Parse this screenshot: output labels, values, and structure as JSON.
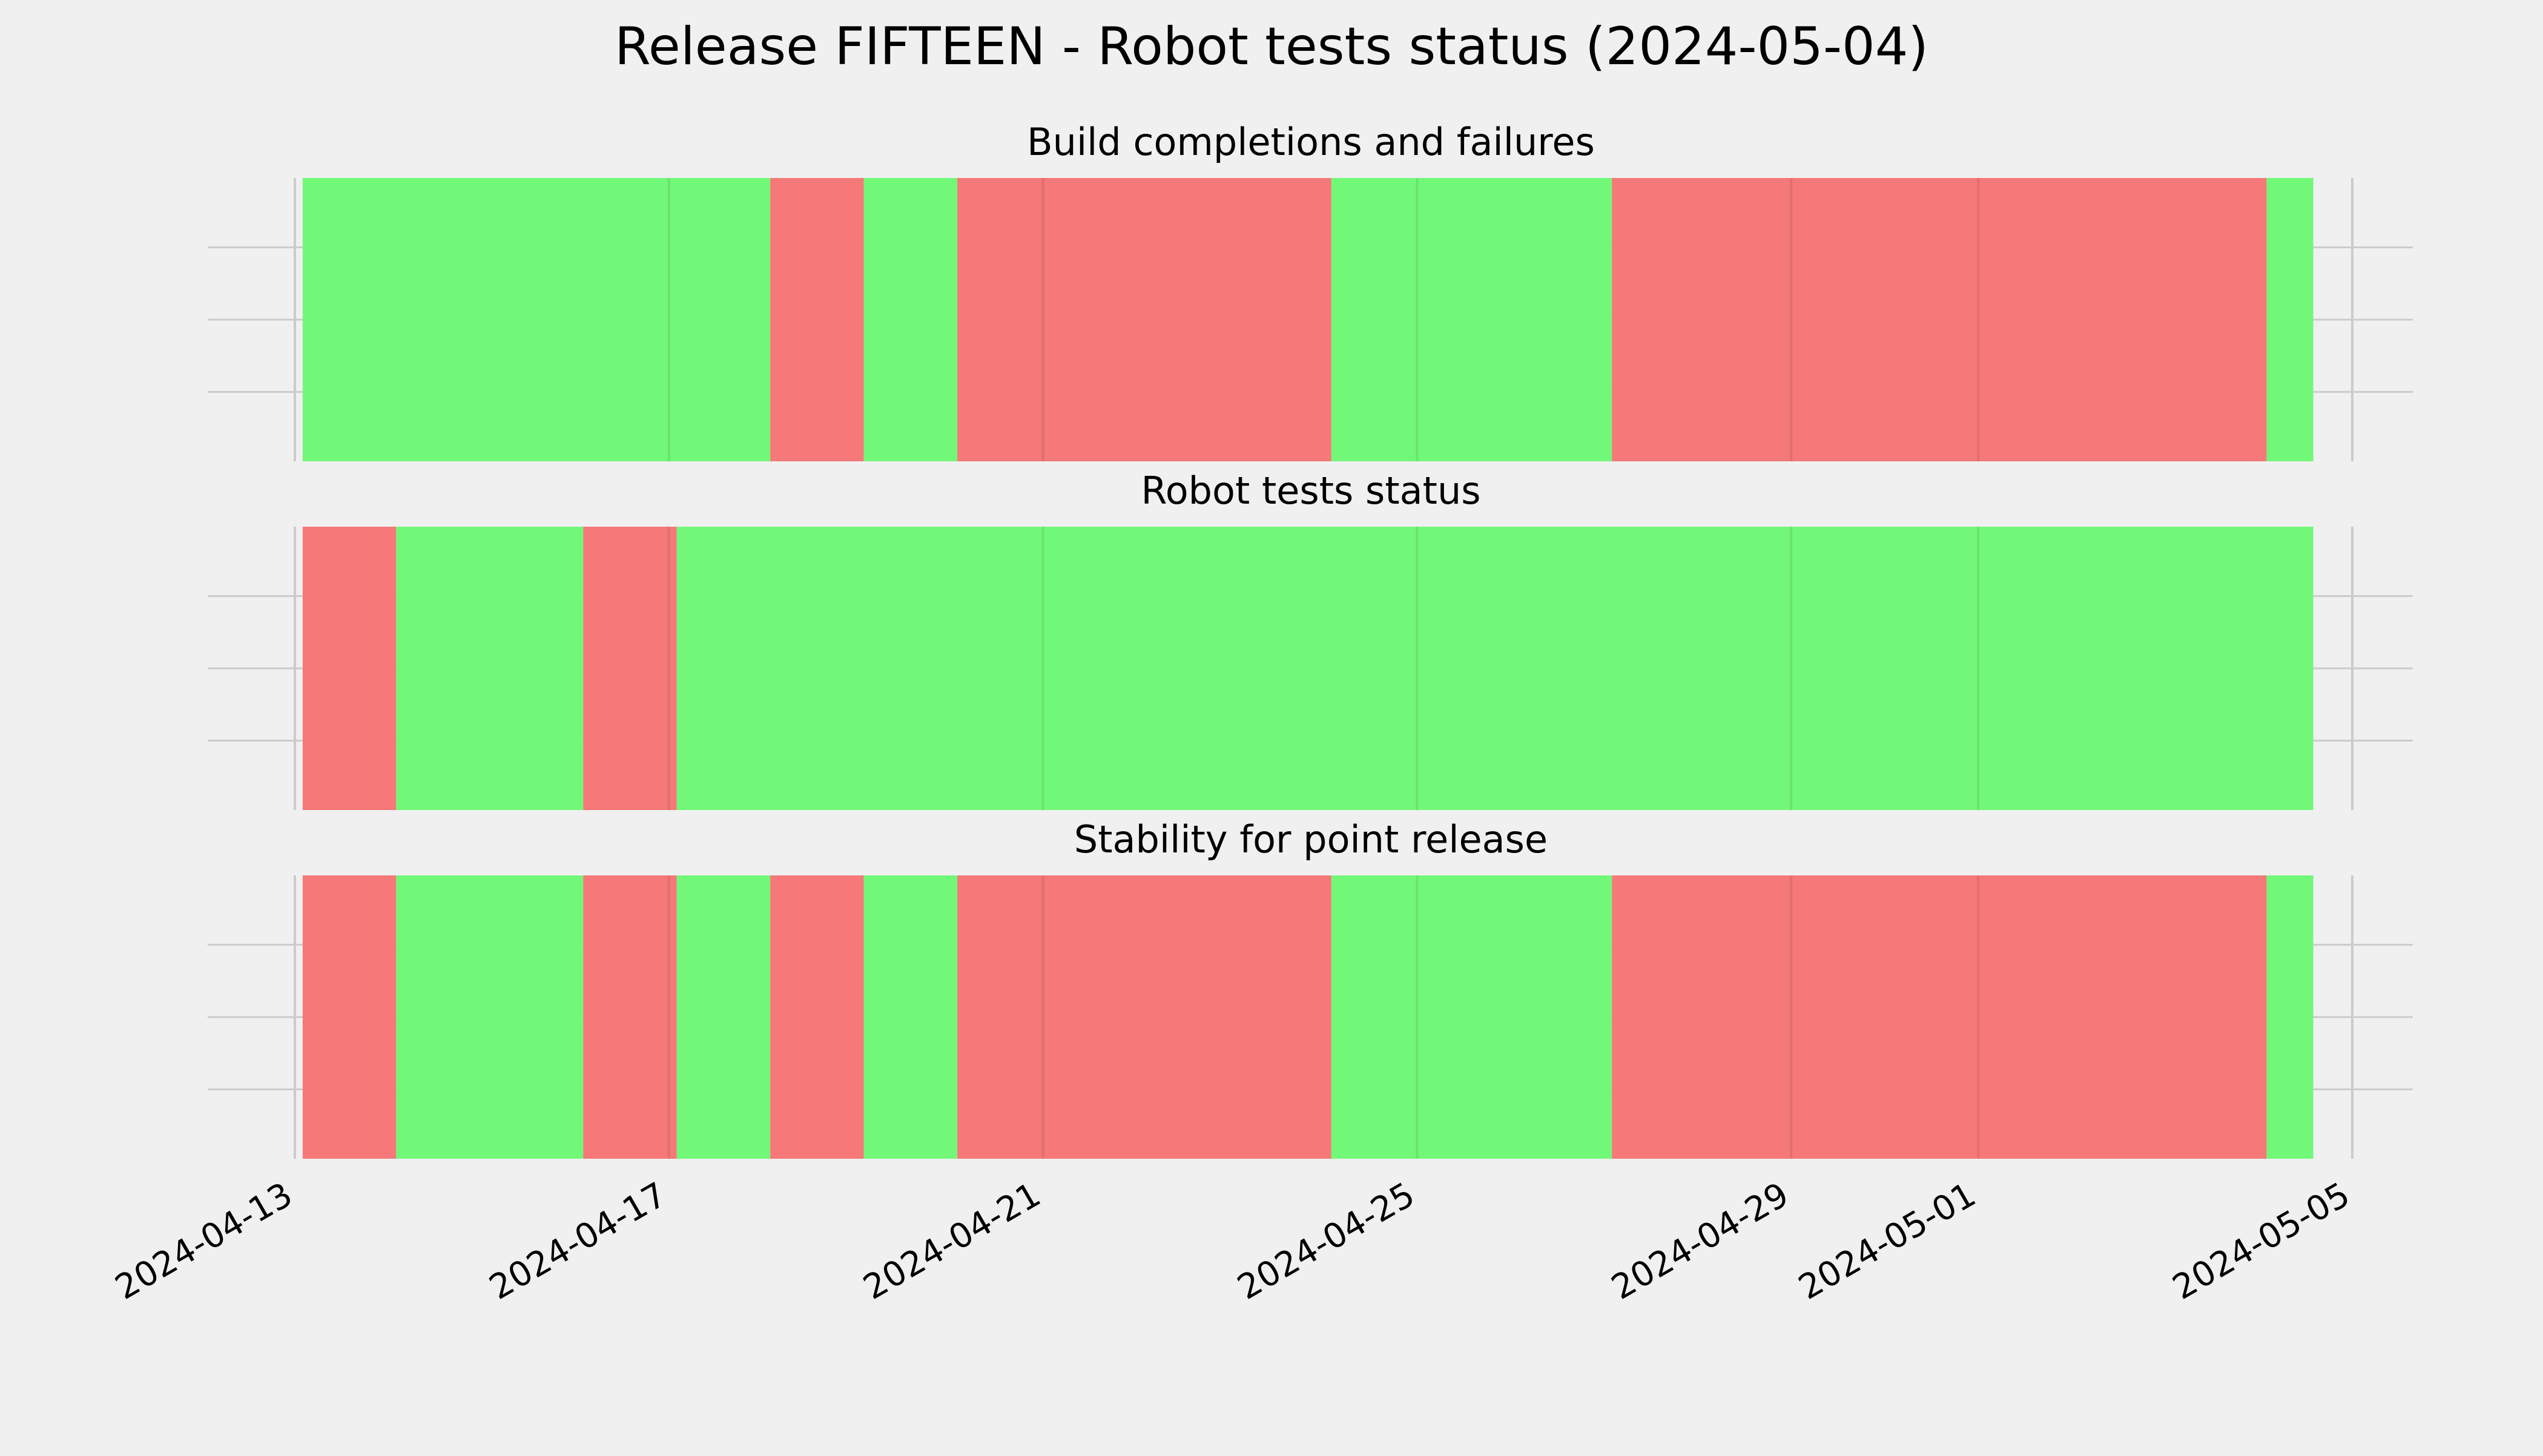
{
  "chart_data": {
    "type": "timeline",
    "title": "Release FIFTEEN - Robot tests status (2024-05-04)",
    "x_range": [
      "2024-04-13",
      "2024-05-05"
    ],
    "x_ticks": [
      "2024-04-13",
      "2024-04-17",
      "2024-04-21",
      "2024-04-25",
      "2024-04-29",
      "2024-05-01",
      "2024-05-05"
    ],
    "status_colors": {
      "pass": "#72f878",
      "fail": "#f67878"
    },
    "grid": true,
    "panels": [
      {
        "title": "Build completions and failures",
        "segments": [
          {
            "start": "2024-04-13 02:00",
            "end": "2024-04-18 02:00",
            "status": "pass"
          },
          {
            "start": "2024-04-18 02:00",
            "end": "2024-04-19 02:00",
            "status": "fail"
          },
          {
            "start": "2024-04-19 02:00",
            "end": "2024-04-20 02:00",
            "status": "pass"
          },
          {
            "start": "2024-04-20 02:00",
            "end": "2024-04-24 02:00",
            "status": "fail"
          },
          {
            "start": "2024-04-24 02:00",
            "end": "2024-04-27 02:00",
            "status": "pass"
          },
          {
            "start": "2024-04-27 02:00",
            "end": "2024-05-04 02:00",
            "status": "fail"
          },
          {
            "start": "2024-05-04 02:00",
            "end": "2024-05-04 14:00",
            "status": "pass"
          }
        ]
      },
      {
        "title": "Robot tests status",
        "segments": [
          {
            "start": "2024-04-13 02:00",
            "end": "2024-04-14 02:00",
            "status": "fail"
          },
          {
            "start": "2024-04-14 02:00",
            "end": "2024-04-16 02:00",
            "status": "pass"
          },
          {
            "start": "2024-04-16 02:00",
            "end": "2024-04-17 02:00",
            "status": "fail"
          },
          {
            "start": "2024-04-17 02:00",
            "end": "2024-05-04 14:00",
            "status": "pass"
          }
        ]
      },
      {
        "title": "Stability for point release",
        "segments": [
          {
            "start": "2024-04-13 02:00",
            "end": "2024-04-14 02:00",
            "status": "fail"
          },
          {
            "start": "2024-04-14 02:00",
            "end": "2024-04-16 02:00",
            "status": "pass"
          },
          {
            "start": "2024-04-16 02:00",
            "end": "2024-04-17 02:00",
            "status": "fail"
          },
          {
            "start": "2024-04-17 02:00",
            "end": "2024-04-18 02:00",
            "status": "pass"
          },
          {
            "start": "2024-04-18 02:00",
            "end": "2024-04-19 02:00",
            "status": "fail"
          },
          {
            "start": "2024-04-19 02:00",
            "end": "2024-04-20 02:00",
            "status": "pass"
          },
          {
            "start": "2024-04-20 02:00",
            "end": "2024-04-24 02:00",
            "status": "fail"
          },
          {
            "start": "2024-04-24 02:00",
            "end": "2024-04-27 02:00",
            "status": "pass"
          },
          {
            "start": "2024-04-27 02:00",
            "end": "2024-05-04 02:00",
            "status": "fail"
          },
          {
            "start": "2024-05-04 02:00",
            "end": "2024-05-04 14:00",
            "status": "pass"
          }
        ]
      }
    ]
  }
}
